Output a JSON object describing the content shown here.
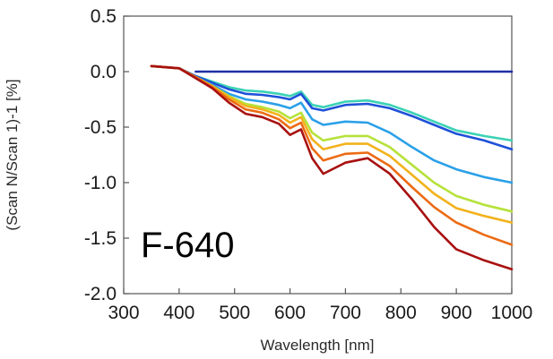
{
  "chart_data": {
    "type": "line",
    "title": "",
    "xlabel": "Wavelength [nm]",
    "ylabel": "(Scan N/Scan 1)-1 [%]",
    "xlim": [
      300,
      1000
    ],
    "ylim": [
      -2.0,
      0.5
    ],
    "xticks": [
      300,
      400,
      500,
      600,
      700,
      800,
      900,
      1000
    ],
    "xtick_labels": [
      "300",
      "400",
      "500",
      "600",
      "700",
      "800",
      "900",
      "1000"
    ],
    "yticks": [
      0.5,
      0.0,
      -0.5,
      -1.0,
      -1.5,
      -2.0
    ],
    "ytick_labels": [
      "0.5",
      "0.0",
      "-0.5",
      "-1.0",
      "-1.5",
      "-2.0"
    ],
    "grid": false,
    "legend": "none",
    "annotation": "F-640",
    "x": [
      350,
      400,
      430,
      460,
      490,
      520,
      550,
      580,
      600,
      620,
      640,
      660,
      700,
      740,
      780,
      820,
      860,
      900,
      950,
      1000
    ],
    "series": [
      {
        "color": "#1f2fa5",
        "values": [
          0.0,
          0.0,
          0.0,
          0.0,
          0.0,
          0.0,
          0.0,
          0.0,
          0.0,
          0.0,
          0.0,
          0.0,
          0.0,
          0.0,
          0.0,
          0.0,
          0.0,
          0.0,
          0.0,
          0.0
        ]
      },
      {
        "color": "#3bd2b5",
        "values": [
          0.05,
          0.03,
          -0.04,
          -0.09,
          -0.14,
          -0.17,
          -0.18,
          -0.2,
          -0.22,
          -0.18,
          -0.3,
          -0.32,
          -0.27,
          -0.26,
          -0.3,
          -0.37,
          -0.45,
          -0.53,
          -0.58,
          -0.62
        ]
      },
      {
        "color": "#1e50d8",
        "values": [
          0.05,
          0.03,
          -0.04,
          -0.1,
          -0.16,
          -0.2,
          -0.21,
          -0.23,
          -0.25,
          -0.2,
          -0.33,
          -0.35,
          -0.3,
          -0.29,
          -0.33,
          -0.4,
          -0.48,
          -0.56,
          -0.62,
          -0.7
        ]
      },
      {
        "color": "#2aa0e8",
        "values": [
          0.05,
          0.03,
          -0.05,
          -0.12,
          -0.2,
          -0.25,
          -0.27,
          -0.3,
          -0.33,
          -0.28,
          -0.43,
          -0.48,
          -0.45,
          -0.46,
          -0.55,
          -0.68,
          -0.8,
          -0.88,
          -0.95,
          -1.0
        ]
      },
      {
        "color": "#b6e23a",
        "values": [
          0.05,
          0.03,
          -0.05,
          -0.13,
          -0.22,
          -0.29,
          -0.32,
          -0.36,
          -0.42,
          -0.37,
          -0.55,
          -0.62,
          -0.58,
          -0.58,
          -0.68,
          -0.84,
          -1.0,
          -1.12,
          -1.2,
          -1.26
        ]
      },
      {
        "color": "#f2b21c",
        "values": [
          0.05,
          0.03,
          -0.05,
          -0.13,
          -0.23,
          -0.31,
          -0.34,
          -0.39,
          -0.46,
          -0.41,
          -0.61,
          -0.7,
          -0.65,
          -0.65,
          -0.76,
          -0.93,
          -1.1,
          -1.23,
          -1.3,
          -1.36
        ]
      },
      {
        "color": "#ec6b14",
        "values": [
          0.05,
          0.03,
          -0.05,
          -0.14,
          -0.25,
          -0.34,
          -0.37,
          -0.43,
          -0.51,
          -0.46,
          -0.69,
          -0.8,
          -0.74,
          -0.73,
          -0.85,
          -1.04,
          -1.22,
          -1.36,
          -1.47,
          -1.56
        ]
      },
      {
        "color": "#a81010",
        "values": [
          0.05,
          0.03,
          -0.06,
          -0.15,
          -0.28,
          -0.38,
          -0.41,
          -0.47,
          -0.57,
          -0.52,
          -0.78,
          -0.92,
          -0.82,
          -0.78,
          -0.92,
          -1.15,
          -1.4,
          -1.6,
          -1.7,
          -1.78
        ]
      }
    ]
  }
}
